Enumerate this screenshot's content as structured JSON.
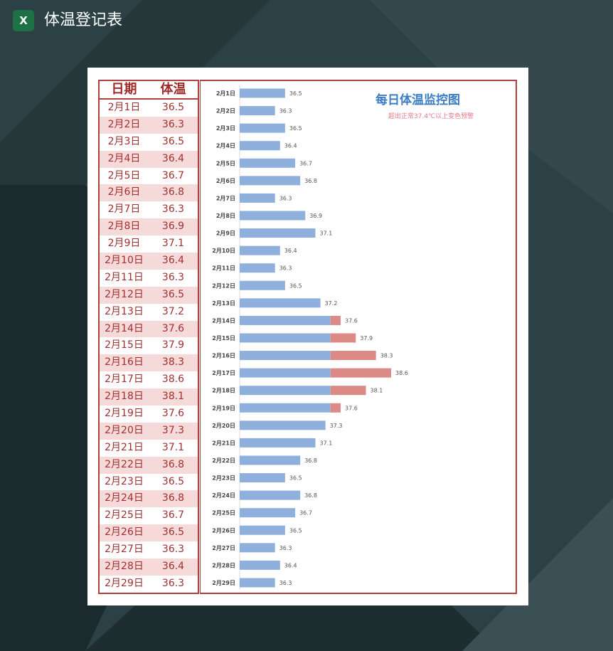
{
  "app": {
    "title": "体温登记表",
    "icon": "excel-icon"
  },
  "table": {
    "headers": [
      "日期",
      "体温"
    ]
  },
  "colors": {
    "normal": "#8fb0dc",
    "alert": "#dc8a86",
    "border": "#b04040"
  },
  "chart_data": {
    "type": "bar",
    "orientation": "horizontal",
    "stacked": true,
    "title": "每日体温监控图",
    "subtitle": "超出正常37.4℃以上变色预警",
    "threshold": 37.4,
    "xlim": [
      35.6,
      38.8
    ],
    "categories": [
      "2月1日",
      "2月2日",
      "2月3日",
      "2月4日",
      "2月5日",
      "2月6日",
      "2月7日",
      "2月8日",
      "2月9日",
      "2月10日",
      "2月11日",
      "2月12日",
      "2月13日",
      "2月14日",
      "2月15日",
      "2月16日",
      "2月17日",
      "2月18日",
      "2月19日",
      "2月20日",
      "2月21日",
      "2月22日",
      "2月23日",
      "2月24日",
      "2月25日",
      "2月26日",
      "2月27日",
      "2月28日",
      "2月29日"
    ],
    "values": [
      36.5,
      36.3,
      36.5,
      36.4,
      36.7,
      36.8,
      36.3,
      36.9,
      37.1,
      36.4,
      36.3,
      36.5,
      37.2,
      37.6,
      37.9,
      38.3,
      38.6,
      38.1,
      37.6,
      37.3,
      37.1,
      36.8,
      36.5,
      36.8,
      36.7,
      36.5,
      36.3,
      36.4,
      36.3
    ]
  }
}
